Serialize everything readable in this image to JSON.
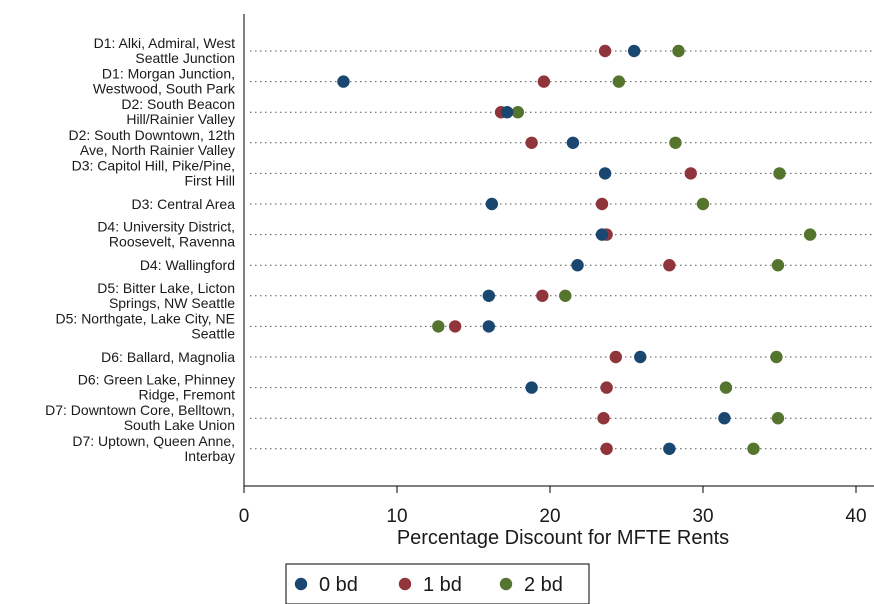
{
  "chart_data": {
    "type": "scatter",
    "categories": [
      [
        "D1: Alki, Admiral, West",
        "Seattle Junction"
      ],
      [
        "D1: Morgan Junction,",
        "Westwood, South Park"
      ],
      [
        "D2: South Beacon",
        "Hill/Rainier Valley"
      ],
      [
        "D2: South Downtown, 12th",
        "Ave, North Rainier Valley"
      ],
      [
        "D3: Capitol Hill, Pike/Pine,",
        "First Hill"
      ],
      [
        "D3: Central Area"
      ],
      [
        "D4: University District,",
        "Roosevelt, Ravenna"
      ],
      [
        "D4: Wallingford"
      ],
      [
        "D5: Bitter Lake, Licton",
        "Springs, NW Seattle"
      ],
      [
        "D5: Northgate, Lake City, NE",
        "Seattle"
      ],
      [
        "D6: Ballard, Magnolia"
      ],
      [
        "D6: Green Lake, Phinney",
        "Ridge, Fremont"
      ],
      [
        "D7: Downtown Core, Belltown,",
        "South Lake Union"
      ],
      [
        "D7: Uptown, Queen Anne,",
        "Interbay"
      ]
    ],
    "series": [
      {
        "name": "0 bd",
        "color": "#1a476f",
        "values": [
          25.5,
          6.5,
          17.2,
          21.5,
          23.6,
          16.2,
          23.4,
          21.8,
          16.0,
          16.0,
          25.9,
          18.8,
          31.4,
          27.8
        ]
      },
      {
        "name": "1 bd",
        "color": "#90353b",
        "values": [
          23.6,
          19.6,
          16.8,
          18.8,
          29.2,
          23.4,
          23.7,
          27.8,
          19.5,
          13.8,
          24.3,
          23.7,
          23.5,
          23.7
        ]
      },
      {
        "name": "2 bd",
        "color": "#55752f",
        "values": [
          28.4,
          24.5,
          17.9,
          28.2,
          35.0,
          30.0,
          37.0,
          34.9,
          21.0,
          12.7,
          34.8,
          31.5,
          34.9,
          33.3
        ]
      }
    ],
    "xlabel": "Percentage Discount for MFTE Rents",
    "xlim": [
      0,
      40
    ],
    "xticks": [
      "0",
      "10",
      "20",
      "30",
      "40"
    ],
    "grid": "dotted horizontal lines per category",
    "legend_position": "bottom"
  }
}
